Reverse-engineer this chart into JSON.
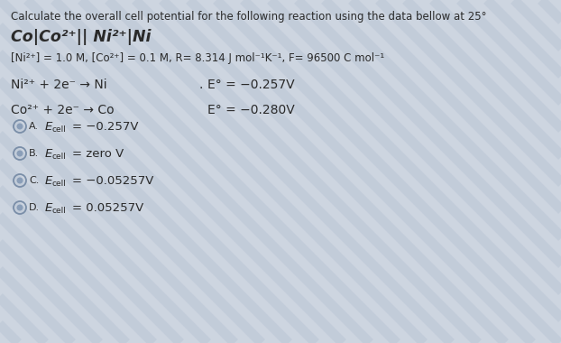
{
  "background_color": "#cdd5e0",
  "stripe_color": "#b8c4d4",
  "text_color": "#2a2a2a",
  "title": "Calculate the overall cell potential for the following reaction using the data bellow at 25°",
  "cell_notation": "Co|Co²⁺|| Ni²⁺|Ni",
  "conditions": "[Ni²⁺] = 1.0 M, [Co²⁺] = 0.1 M, R= 8.314 J mol⁻¹K⁻¹, F= 96500 C mol⁻¹",
  "reaction1_left": "Ni²⁺ + 2e⁻ → Ni",
  "reaction1_E": "E° = −0.257V",
  "reaction2_left": "Co²⁺ + 2e⁻ → Co",
  "reaction2_E": "E° = −0.280V",
  "options": [
    {
      "letter": "A",
      "value": "= −0.257V"
    },
    {
      "letter": "B",
      "value": "= zero V"
    },
    {
      "letter": "C",
      "value": "= −0.05257V"
    },
    {
      "letter": "D",
      "value": "= 0.05257V"
    }
  ],
  "circle_outer_color": "#7a8ea8",
  "circle_inner_color": "#8a9eb8",
  "title_fs": 8.5,
  "notation_fs": 12.5,
  "cond_fs": 8.5,
  "body_fs": 10,
  "option_fs": 9.5
}
